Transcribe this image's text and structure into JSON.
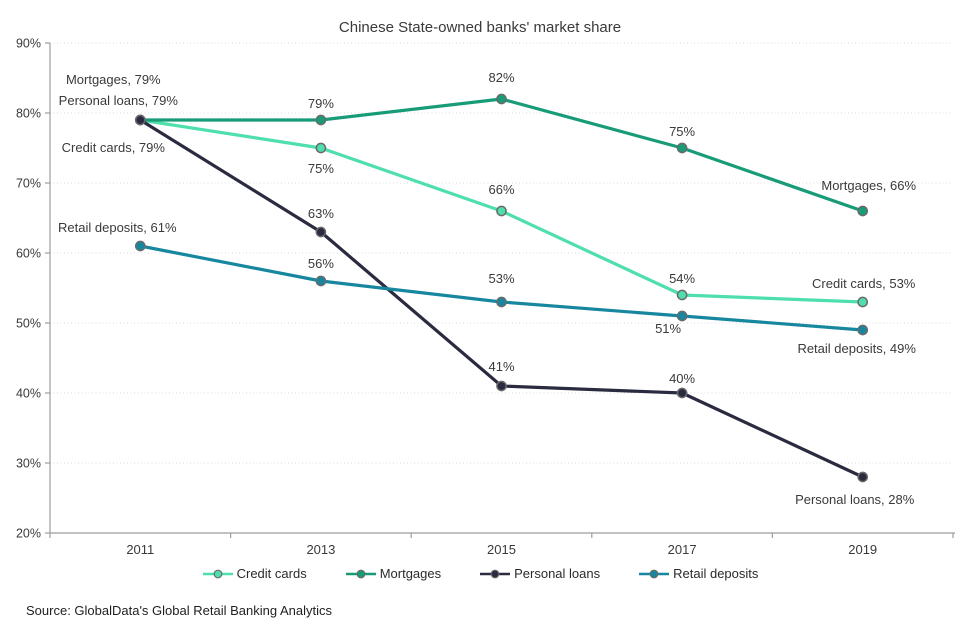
{
  "source_note": "Source: GlobalData's Global Retail Banking Analytics",
  "chart_data": {
    "type": "line",
    "title": "Chinese State-owned banks' market share",
    "categories": [
      "2011",
      "2013",
      "2015",
      "2017",
      "2019"
    ],
    "ylim": [
      20,
      90
    ],
    "ytick_step": 10,
    "ytick_labels": [
      "20%",
      "30%",
      "40%",
      "50%",
      "60%",
      "70%",
      "80%",
      "90%"
    ],
    "grid": "horizontal dotted",
    "legend_position": "bottom",
    "axis_color": "#9d9d9d",
    "grid_color": "#d9d9d9",
    "label_color": "#3a3a3a",
    "marker_stroke": "#6a6a6a",
    "series": [
      {
        "name": "Credit cards",
        "color": "#4fdfac",
        "values": [
          79,
          75,
          66,
          54,
          53
        ],
        "point_labels": [
          "Credit cards, 79%",
          "75%",
          "66%",
          "54%",
          "Credit cards, 53%"
        ],
        "label_offsets": [
          [
            -27,
            32
          ],
          [
            0,
            25
          ],
          [
            0,
            -17
          ],
          [
            0,
            -12
          ],
          [
            1,
            -14
          ]
        ]
      },
      {
        "name": "Mortgages",
        "color": "#189c78",
        "values": [
          79,
          79,
          82,
          75,
          66
        ],
        "point_labels": [
          "Mortgages, 79%",
          "79%",
          "82%",
          "75%",
          "Mortgages, 66%"
        ],
        "label_offsets": [
          [
            -27,
            -36
          ],
          [
            0,
            -12
          ],
          [
            0,
            -17
          ],
          [
            0,
            -12
          ],
          [
            6,
            -21
          ]
        ]
      },
      {
        "name": "Personal loans",
        "color": "#2a2a40",
        "values": [
          79,
          63,
          41,
          40,
          28
        ],
        "point_labels": [
          "Personal loans, 79%",
          "63%",
          "41%",
          "40%",
          "Personal loans, 28%"
        ],
        "label_offsets": [
          [
            -22,
            -15
          ],
          [
            0,
            -14
          ],
          [
            0,
            -15
          ],
          [
            0,
            -10
          ],
          [
            -8,
            27
          ]
        ]
      },
      {
        "name": "Retail deposits",
        "color": "#1787a0",
        "values": [
          61,
          56,
          53,
          51,
          49
        ],
        "point_labels": [
          "Retail deposits, 61%",
          "56%",
          "53%",
          "51%",
          "Retail deposits, 49%"
        ],
        "label_offsets": [
          [
            -23,
            -14
          ],
          [
            0,
            -13
          ],
          [
            0,
            -19
          ],
          [
            -14,
            17
          ],
          [
            -6,
            23
          ]
        ]
      }
    ]
  }
}
